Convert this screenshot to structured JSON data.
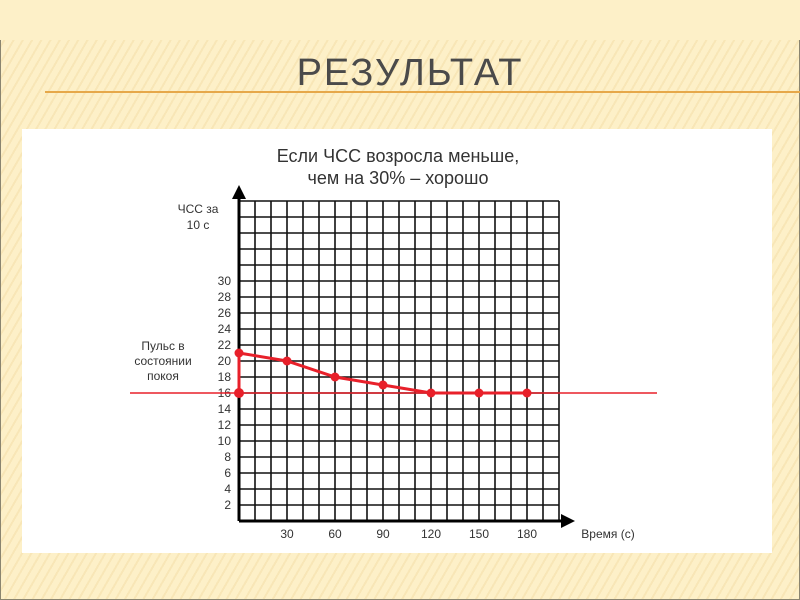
{
  "slide_title": "РЕЗУЛЬТАТ",
  "chart_data": {
    "type": "line",
    "title": [
      "Если ЧСС возросла меньше,",
      "чем на 30% – хорошо"
    ],
    "ylabel": [
      "ЧСС за",
      "10 с"
    ],
    "xlabel": "Время (с)",
    "x": [
      0,
      30,
      60,
      90,
      120,
      150,
      180
    ],
    "values": [
      21,
      20,
      18,
      17,
      16,
      16,
      16
    ],
    "xticks": [
      30,
      60,
      90,
      120,
      150,
      180
    ],
    "yticks": [
      2,
      4,
      6,
      8,
      10,
      12,
      14,
      16,
      18,
      20,
      22,
      24,
      26,
      28,
      30
    ],
    "xlim": [
      0,
      200
    ],
    "ylim": [
      0,
      40
    ],
    "grid": true,
    "reference_line": {
      "value": 16,
      "label": [
        "Пульс в",
        "состоянии",
        "покоя"
      ]
    },
    "colors": {
      "series": "#e8202a",
      "grid": "#111111"
    }
  }
}
